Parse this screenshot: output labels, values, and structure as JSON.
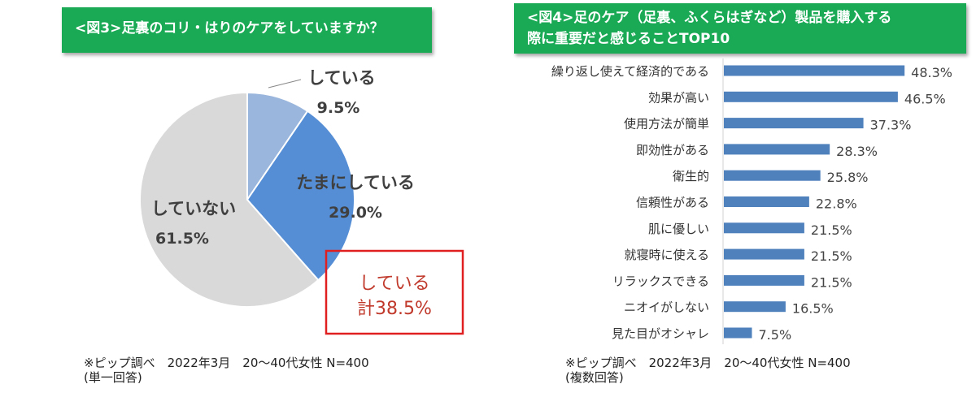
{
  "left": {
    "header": "<図3>足裏のコリ・はりのケアをしていますか？",
    "total_box": {
      "line1": "している",
      "line2": "計38.5%"
    },
    "note": {
      "line1": "※ピップ調べ　2022年3月　20～40代女性 N=400",
      "line2": "(単一回答)"
    }
  },
  "right": {
    "header": {
      "line1": "<図4>足のケア（足裏、ふくらはぎなど）製品を購入する",
      "line2": "際に重要だと感じることTOP10"
    },
    "note": {
      "line1": "※ピップ調べ　2022年3月　20～40代女性 N=400",
      "line2": "(複数回答)"
    }
  },
  "chart_data": [
    {
      "type": "pie",
      "title": "<図3>足裏のコリ・はりのケアをしていますか？",
      "slices": [
        {
          "label": "している",
          "value": 9.5,
          "value_label": "9.5%",
          "color": "#9ab6dc"
        },
        {
          "label": "たまにしている",
          "value": 29.0,
          "value_label": "29.0%",
          "color": "#558ed5"
        },
        {
          "label": "していない",
          "value": 61.5,
          "value_label": "61.5%",
          "color": "#d9d9d9"
        }
      ]
    },
    {
      "type": "bar",
      "orientation": "horizontal",
      "title": "<図4>足のケア（足裏、ふくらはぎなど）製品を購入する際に重要だと感じることTOP10",
      "bar_color": "#4f81bd",
      "categories": [
        "繰り返し使えて経済的である",
        "効果が高い",
        "使用方法が簡単",
        "即効性がある",
        "衛生的",
        "信頼性がある",
        "肌に優しい",
        "就寝時に使える",
        "リラックスできる",
        "ニオイがしない",
        "見た目がオシャレ"
      ],
      "values": [
        48.3,
        46.5,
        37.3,
        28.3,
        25.8,
        22.8,
        21.5,
        21.5,
        21.5,
        16.5,
        7.5
      ],
      "value_labels": [
        "48.3%",
        "46.5%",
        "37.3%",
        "28.3%",
        "25.8%",
        "22.8%",
        "21.5%",
        "21.5%",
        "21.5%",
        "16.5%",
        "7.5%"
      ],
      "xlim": [
        0,
        50
      ]
    }
  ]
}
